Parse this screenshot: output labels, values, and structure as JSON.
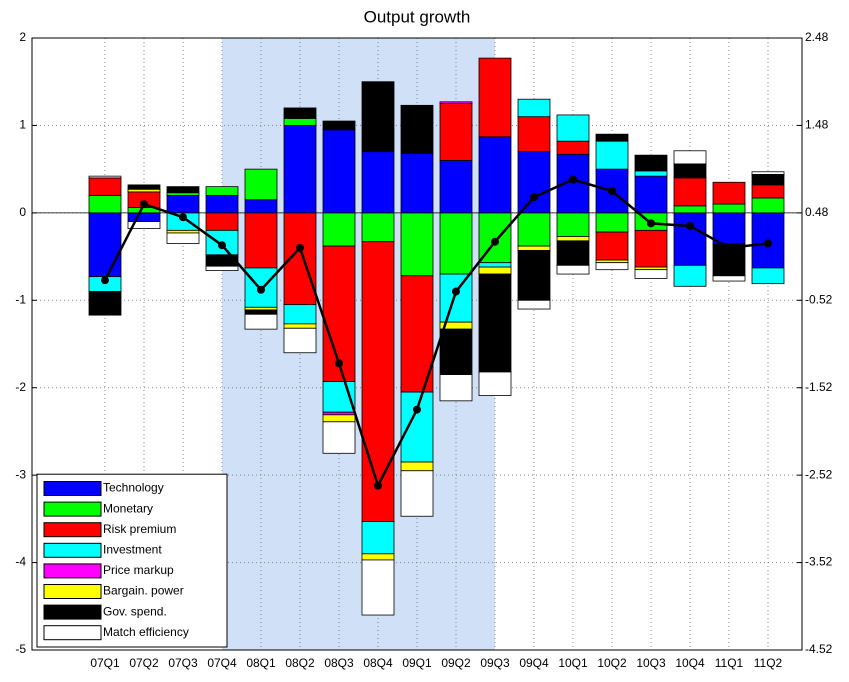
{
  "chart_data": {
    "type": "bar",
    "title": "Output growth",
    "categories": [
      "07Q1",
      "07Q2",
      "07Q3",
      "07Q4",
      "08Q1",
      "08Q2",
      "08Q3",
      "08Q4",
      "09Q1",
      "09Q2",
      "09Q3",
      "09Q4",
      "10Q1",
      "10Q2",
      "10Q3",
      "10Q4",
      "11Q1",
      "11Q2"
    ],
    "stacked": true,
    "shaded_range": [
      "07Q4",
      "09Q3"
    ],
    "shade_color": "#cfe0f7",
    "series": [
      {
        "name": "Technology",
        "color": "#0000ff",
        "values": [
          -0.73,
          -0.1,
          0.2,
          0.2,
          0.15,
          1.0,
          0.95,
          0.7,
          0.68,
          0.6,
          0.87,
          0.7,
          0.67,
          0.5,
          0.42,
          -0.6,
          -0.35,
          -0.63
        ]
      },
      {
        "name": "Monetary",
        "color": "#00ff00",
        "values": [
          0.2,
          0.06,
          0.03,
          0.1,
          0.35,
          0.08,
          -0.38,
          -0.33,
          -0.72,
          -0.7,
          -0.57,
          -0.38,
          -0.27,
          -0.22,
          -0.2,
          0.08,
          0.1,
          0.17
        ]
      },
      {
        "name": "Risk premium",
        "color": "#ff0000",
        "values": [
          0.2,
          0.18,
          0,
          -0.2,
          -0.63,
          -1.05,
          -1.55,
          -3.2,
          -1.33,
          0.65,
          0.9,
          0.4,
          0.15,
          -0.32,
          -0.42,
          0.32,
          0.25,
          0.15
        ]
      },
      {
        "name": "Investment",
        "color": "#00ffff",
        "values": [
          -0.17,
          0,
          -0.2,
          -0.28,
          -0.45,
          -0.22,
          -0.35,
          -0.37,
          -0.8,
          -0.55,
          -0.05,
          0.2,
          0.3,
          0.32,
          0.06,
          -0.24,
          0,
          -0.18
        ]
      },
      {
        "name": "Price markup",
        "color": "#ff00ff",
        "values": [
          0,
          0,
          0,
          0,
          0,
          0,
          -0.03,
          0,
          0,
          0.02,
          0,
          0,
          0,
          0,
          0,
          0,
          0,
          0
        ]
      },
      {
        "name": "Bargain. power",
        "color": "#ffff00",
        "values": [
          0,
          0.03,
          -0.03,
          0,
          -0.03,
          -0.05,
          -0.08,
          -0.07,
          -0.1,
          -0.08,
          -0.08,
          -0.05,
          -0.05,
          -0.03,
          -0.03,
          0,
          0,
          0
        ]
      },
      {
        "name": "Gov. spend.",
        "color": "#000000",
        "values": [
          -0.27,
          0.05,
          0.07,
          -0.13,
          -0.05,
          0.12,
          0.1,
          0.8,
          0.55,
          -0.52,
          -1.12,
          -0.57,
          -0.28,
          0.08,
          0.18,
          0.16,
          -0.37,
          0.12
        ]
      },
      {
        "name": "Match efficiency",
        "color": "#ffffff",
        "values": [
          0.02,
          -0.08,
          -0.12,
          -0.05,
          -0.17,
          -0.28,
          -0.36,
          -0.63,
          -0.52,
          -0.3,
          -0.27,
          -0.1,
          -0.1,
          -0.08,
          -0.1,
          0.15,
          -0.06,
          0.03
        ]
      }
    ],
    "line": {
      "type": "line",
      "axis": "y2",
      "color": "#000000",
      "values": [
        -0.29,
        0.58,
        0.43,
        0.11,
        -0.4,
        0.08,
        -1.24,
        -2.64,
        -1.77,
        -0.42,
        0.15,
        0.66,
        0.86,
        0.73,
        0.36,
        0.33,
        0.08,
        0.13
      ]
    },
    "ylim": [
      -5,
      2
    ],
    "yticks": [
      -5,
      -4,
      -3,
      -2,
      -1,
      0,
      1,
      2
    ],
    "y2lim": [
      -4.52,
      2.48
    ],
    "y2ticks": [
      -4.52,
      -3.52,
      -2.52,
      -1.52,
      -0.52,
      0.48,
      1.48,
      2.48
    ],
    "grid": true,
    "legend": "lower left"
  }
}
